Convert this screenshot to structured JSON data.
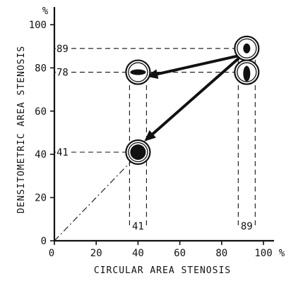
{
  "chart_data": {
    "type": "scatter",
    "title": "",
    "xlabel": "CIRCULAR AREA STENOSIS",
    "ylabel": "DENSITOMETRIC AREA STENOSIS",
    "x_unit_label": "%",
    "y_unit_label": "%",
    "xlim": [
      0,
      100
    ],
    "ylim": [
      0,
      100
    ],
    "x_ticks": [
      0,
      20,
      40,
      60,
      80,
      100
    ],
    "y_ticks": [
      0,
      20,
      40,
      60,
      80,
      100
    ],
    "x_tick_labels": [
      "0",
      "20",
      "40",
      "60",
      "80",
      "100"
    ],
    "y_tick_labels": [
      "0",
      "20",
      "40",
      "60",
      "80",
      "100"
    ],
    "grid": false,
    "identity_line": true,
    "points": [
      {
        "x": 92,
        "y": 89,
        "shape": "ring-vertical-blob"
      },
      {
        "x": 92,
        "y": 78,
        "shape": "ring-vertical-blob"
      },
      {
        "x": 40,
        "y": 78,
        "shape": "ring-horizontal-blob"
      },
      {
        "x": 40,
        "y": 41,
        "shape": "ring-filled"
      }
    ],
    "arrows": [
      {
        "from": [
          90,
          86
        ],
        "to": [
          44,
          76
        ]
      },
      {
        "from": [
          90,
          86
        ],
        "to": [
          43,
          46
        ]
      }
    ],
    "reference_lines": [
      {
        "orientation": "horizontal",
        "value": 89,
        "label": "89",
        "x_to": 92
      },
      {
        "orientation": "horizontal",
        "value": 78,
        "label": "78",
        "x_to": 92
      },
      {
        "orientation": "horizontal",
        "value": 41,
        "label": "41",
        "x_to": 40
      },
      {
        "orientation": "vertical",
        "value": 41,
        "label": "41",
        "y_from": 0,
        "y_to": 78
      },
      {
        "orientation": "vertical",
        "value": 89,
        "label": "89",
        "y_from": 0,
        "y_to": 89
      }
    ]
  }
}
